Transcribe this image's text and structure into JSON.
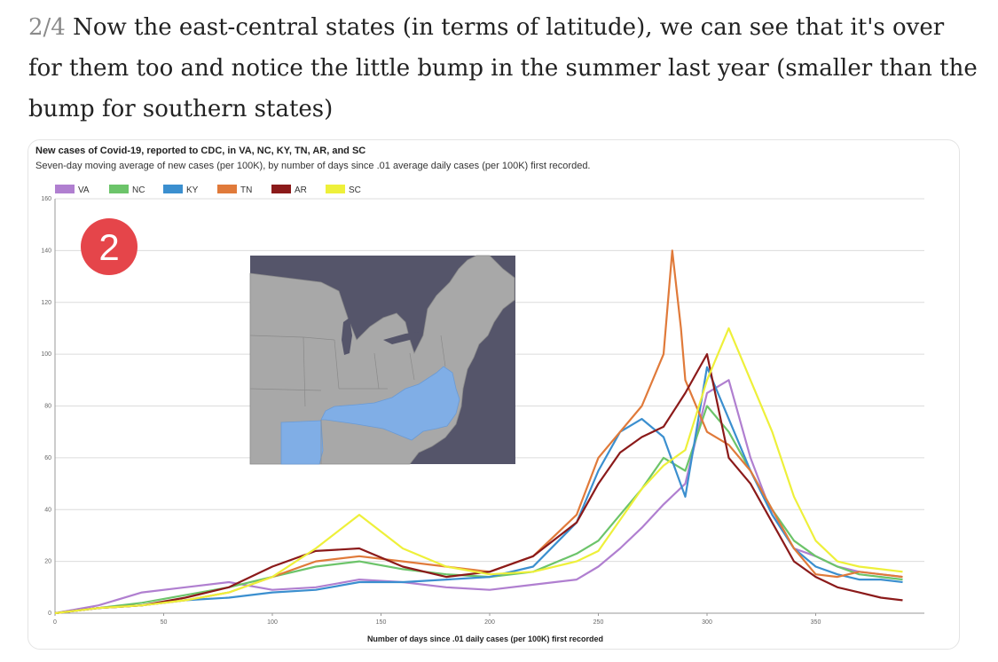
{
  "tweet": {
    "number": "2/4",
    "text": "Now the east-central states (in terms of latitude), we can see that it's over for them too and notice the little bump in the summer last year (smaller than the bump for southern states)"
  },
  "badge": {
    "label": "2",
    "color": "#e5454a"
  },
  "inset_map": {
    "ocean_color": "#55556a",
    "land_color": "#a8a8a8",
    "highlight_color": "#80aee6"
  },
  "chart_data": {
    "type": "line",
    "title": "New cases of Covid-19, reported to CDC, in VA, NC, KY, TN, AR, and SC",
    "subtitle": "Seven-day moving average of new cases (per 100K), by number of days since .01 average daily cases (per 100K) first recorded.",
    "xlabel": "Number of days since .01 daily cases (per 100K) first recorded",
    "ylabel": "",
    "xlim": [
      0,
      400
    ],
    "ylim": [
      0,
      160
    ],
    "xticks": [
      "0",
      "50",
      "100",
      "150",
      "200",
      "250",
      "300",
      "350"
    ],
    "yticks": [
      "0",
      "20",
      "40",
      "60",
      "80",
      "100",
      "120",
      "140",
      "160"
    ],
    "legend_position": "top-left",
    "grid": true,
    "series": [
      {
        "name": "VA",
        "color": "#b07fd0",
        "x": [
          0,
          20,
          40,
          60,
          80,
          100,
          120,
          140,
          160,
          180,
          200,
          220,
          240,
          250,
          260,
          270,
          280,
          290,
          300,
          310,
          320,
          330,
          340,
          350,
          360,
          370,
          380,
          390
        ],
        "y": [
          0,
          3,
          8,
          10,
          12,
          9,
          10,
          13,
          12,
          10,
          9,
          11,
          13,
          18,
          25,
          33,
          42,
          50,
          85,
          90,
          60,
          38,
          25,
          22,
          18,
          16,
          15,
          14
        ]
      },
      {
        "name": "NC",
        "color": "#6cc46a",
        "x": [
          0,
          20,
          40,
          60,
          80,
          100,
          120,
          140,
          160,
          180,
          200,
          220,
          240,
          250,
          260,
          270,
          280,
          290,
          300,
          310,
          320,
          330,
          340,
          350,
          360,
          370,
          380,
          390
        ],
        "y": [
          0,
          2,
          4,
          7,
          10,
          14,
          18,
          20,
          17,
          15,
          14,
          16,
          23,
          28,
          38,
          48,
          60,
          55,
          80,
          70,
          55,
          40,
          28,
          22,
          18,
          15,
          14,
          13
        ]
      },
      {
        "name": "KY",
        "color": "#3b8fcf",
        "x": [
          0,
          20,
          40,
          60,
          80,
          100,
          120,
          140,
          160,
          180,
          200,
          220,
          240,
          250,
          260,
          270,
          280,
          290,
          300,
          310,
          320,
          330,
          340,
          350,
          360,
          370,
          380,
          390
        ],
        "y": [
          0,
          2,
          3,
          5,
          6,
          8,
          9,
          12,
          12,
          13,
          14,
          18,
          35,
          55,
          70,
          75,
          68,
          45,
          95,
          75,
          55,
          38,
          25,
          18,
          15,
          13,
          13,
          12
        ]
      },
      {
        "name": "TN",
        "color": "#e07a3a",
        "x": [
          0,
          20,
          40,
          60,
          80,
          100,
          120,
          140,
          160,
          180,
          200,
          220,
          240,
          250,
          260,
          270,
          280,
          284,
          288,
          290,
          300,
          310,
          320,
          330,
          340,
          350,
          360,
          370,
          380,
          390
        ],
        "y": [
          0,
          2,
          3,
          5,
          8,
          14,
          20,
          22,
          20,
          18,
          16,
          22,
          38,
          60,
          70,
          80,
          100,
          140,
          110,
          90,
          70,
          65,
          55,
          40,
          25,
          15,
          14,
          16,
          15,
          14
        ]
      },
      {
        "name": "AR",
        "color": "#8b1a1a",
        "x": [
          0,
          20,
          40,
          60,
          80,
          100,
          120,
          140,
          160,
          180,
          200,
          220,
          240,
          250,
          260,
          270,
          280,
          290,
          300,
          310,
          320,
          330,
          340,
          350,
          360,
          370,
          380,
          390
        ],
        "y": [
          0,
          2,
          3,
          6,
          10,
          18,
          24,
          25,
          18,
          14,
          16,
          22,
          35,
          50,
          62,
          68,
          72,
          85,
          100,
          60,
          50,
          35,
          20,
          14,
          10,
          8,
          6,
          5
        ]
      },
      {
        "name": "SC",
        "color": "#eef03a",
        "x": [
          0,
          20,
          40,
          60,
          80,
          100,
          120,
          140,
          160,
          180,
          200,
          220,
          240,
          250,
          260,
          270,
          280,
          290,
          300,
          310,
          320,
          330,
          340,
          350,
          360,
          370,
          380,
          390
        ],
        "y": [
          0,
          2,
          3,
          5,
          8,
          14,
          25,
          38,
          25,
          18,
          15,
          16,
          20,
          24,
          36,
          48,
          57,
          63,
          90,
          110,
          90,
          70,
          45,
          28,
          20,
          18,
          17,
          16
        ]
      }
    ]
  }
}
